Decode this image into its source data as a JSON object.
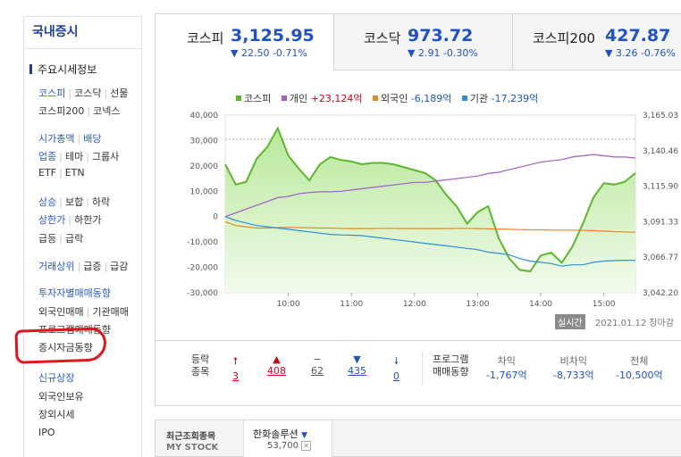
{
  "sidebar": {
    "title": "국내증시",
    "current": "주요시세정보",
    "links": {
      "kospi": "코스피",
      "kosdaq": "코스닥",
      "futures": "선물",
      "kospi200": "코스피200",
      "konex": "코넥스",
      "market_cap": "시가총액",
      "dividend": "배당",
      "industry": "업종",
      "theme": "테마",
      "group": "그룹사",
      "etf": "ETF",
      "etn": "ETN",
      "rise": "상승",
      "flat": "보합",
      "fall": "하락",
      "upper_limit": "상한가",
      "lower_limit": "하한가",
      "surge": "급등",
      "plunge": "급락",
      "volume_top": "거래상위",
      "up_rank": "급증",
      "down_rank": "급감",
      "investor_trend": "투자자별매매동향",
      "foreign_trade": "외국인매매",
      "inst_trade": "기관매매",
      "program_trend": "프로그램매매동향",
      "funds_trend": "증시자금동향",
      "new_listing": "신규상장",
      "foreign_holding": "외국인보유",
      "otc": "장외시세",
      "ipo": "IPO"
    }
  },
  "tabs": [
    {
      "name": "코스피",
      "value": "3,125.95",
      "change": "▼ 22.50 -0.71%"
    },
    {
      "name": "코스닥",
      "value": "973.72",
      "change": "▼ 2.91 -0.30%"
    },
    {
      "name": "코스피200",
      "value": "427.87",
      "change": "▼ 3.26 -0.76%"
    }
  ],
  "legend": {
    "kospi": "코스피",
    "individual": "개인",
    "individual_val": "+23,124억",
    "foreign": "외국인",
    "foreign_val": "-6,189억",
    "institution": "기관",
    "institution_val": "-17,239억"
  },
  "colors": {
    "kospi": "#5cb82a",
    "individual": "#a45dc9",
    "foreign": "#e58a1f",
    "institution": "#2f8fd8",
    "up": "#d0021b",
    "down": "#1f52c9"
  },
  "chart_data": {
    "type": "line",
    "x": [
      "09:00",
      "09:10",
      "09:20",
      "09:30",
      "09:40",
      "09:50",
      "10:00",
      "10:10",
      "10:20",
      "10:30",
      "10:40",
      "10:50",
      "11:00",
      "11:10",
      "11:20",
      "11:30",
      "11:40",
      "11:50",
      "12:00",
      "12:10",
      "12:20",
      "12:30",
      "12:40",
      "12:50",
      "13:00",
      "13:10",
      "13:20",
      "13:30",
      "13:40",
      "13:50",
      "14:00",
      "14:10",
      "14:20",
      "14:30",
      "14:40",
      "14:50",
      "15:00",
      "15:10",
      "15:20",
      "15:30"
    ],
    "left_ticks": [
      "40,000",
      "30,000",
      "20,000",
      "10,000",
      "0",
      "-10,000",
      "-20,000",
      "-30,000"
    ],
    "right_ticks": [
      "3,165.03",
      "3,140.46",
      "3,115.90",
      "3,091.33",
      "3,066.77",
      "3,042.20"
    ],
    "x_ticks": [
      "10:00",
      "11:00",
      "12:00",
      "13:00",
      "14:00",
      "15:00"
    ],
    "ylim_left": [
      -30000,
      40000
    ],
    "ylim_right": [
      3042.2,
      3165.03
    ],
    "series": [
      {
        "name": "코스피",
        "axis": "right",
        "values": [
          3131,
          3117,
          3119,
          3135,
          3143,
          3156,
          3137,
          3128,
          3120,
          3131,
          3136,
          3134,
          3133,
          3131,
          3132,
          3132,
          3131,
          3129,
          3127,
          3125,
          3120,
          3110,
          3102,
          3090,
          3098,
          3102,
          3080,
          3066,
          3058,
          3057,
          3068,
          3070,
          3063,
          3074,
          3090,
          3108,
          3118,
          3117,
          3119,
          3125
        ]
      },
      {
        "name": "개인",
        "axis": "left",
        "values": [
          0,
          1500,
          3000,
          4500,
          6000,
          7500,
          8000,
          9000,
          9500,
          9800,
          9800,
          10000,
          10500,
          11000,
          11500,
          12000,
          12500,
          13000,
          13500,
          13500,
          14000,
          14500,
          15000,
          15500,
          16000,
          17000,
          17500,
          18500,
          19500,
          20500,
          21500,
          22000,
          22500,
          23500,
          24000,
          24500,
          24000,
          23500,
          23500,
          23124
        ]
      },
      {
        "name": "외국인",
        "axis": "left",
        "values": [
          -2000,
          -3500,
          -4000,
          -4500,
          -4500,
          -4300,
          -4200,
          -4300,
          -4400,
          -4500,
          -4500,
          -4600,
          -4700,
          -4700,
          -4700,
          -4600,
          -4600,
          -4700,
          -4700,
          -4700,
          -4700,
          -4700,
          -4600,
          -4600,
          -4700,
          -4800,
          -4900,
          -5000,
          -5100,
          -5200,
          -5200,
          -5300,
          -5300,
          -5300,
          -5400,
          -5500,
          -5700,
          -5900,
          -6000,
          -6189
        ]
      },
      {
        "name": "기관",
        "axis": "left",
        "values": [
          0,
          -1500,
          -2500,
          -3500,
          -4000,
          -4500,
          -5000,
          -5500,
          -6000,
          -6500,
          -7000,
          -7200,
          -7300,
          -7500,
          -8000,
          -8500,
          -9000,
          -9500,
          -10000,
          -10500,
          -11000,
          -11500,
          -12000,
          -12500,
          -13000,
          -14000,
          -14500,
          -15000,
          -16500,
          -17500,
          -18000,
          -18500,
          -19500,
          -19000,
          -19000,
          -18000,
          -17500,
          -17300,
          -17200,
          -17239
        ]
      }
    ]
  },
  "status": {
    "badge": "실시간",
    "date": "2021.01.12 장마감"
  },
  "stats": {
    "updown_label1": "등락",
    "updown_label2": "종목",
    "upper": "3",
    "up": "408",
    "flat": "62",
    "down": "435",
    "lower": "0",
    "program_label1": "프로그램",
    "program_label2": "매매동향",
    "arb_label": "차익",
    "arb_val": "-1,767억",
    "nonarb_label": "비차익",
    "nonarb_val": "-8,733억",
    "total_label": "전체",
    "total_val": "-10,500억"
  },
  "recent": {
    "label1": "최근조회종목",
    "label2": "MY STOCK",
    "stock_name": "한화솔루션",
    "stock_price": "53,700"
  }
}
